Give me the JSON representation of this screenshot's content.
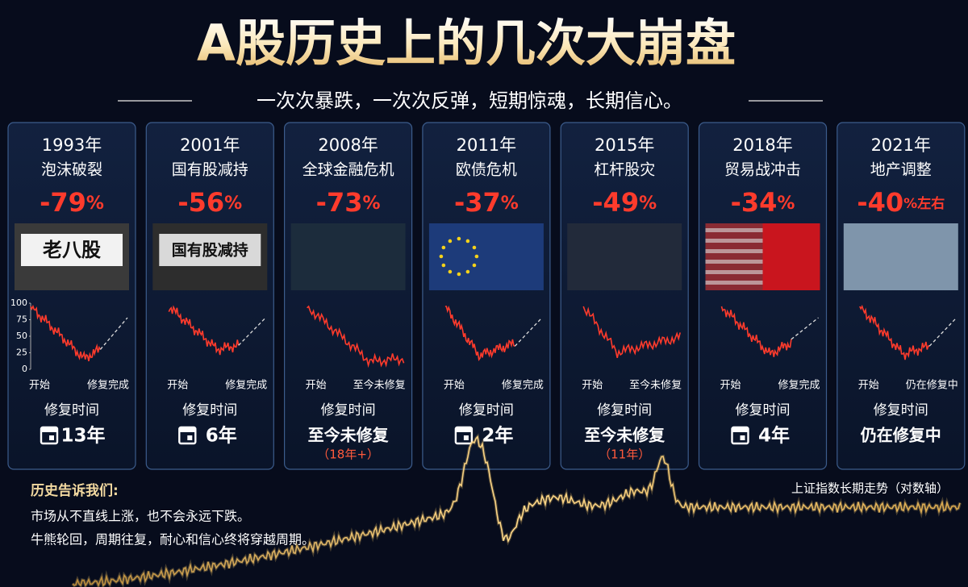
{
  "header": {
    "title": "A股历史上的几次大崩盘",
    "subtitle": "一次次暴跌，一次次反弹，短期惊魂，长期信心。"
  },
  "cards": [
    {
      "year": "1993年",
      "event": "泡沫破裂",
      "drop": "-79",
      "unit": "%",
      "image_text": "老八股",
      "yticks": [
        100,
        75,
        50,
        25,
        0
      ],
      "start": "开始",
      "end": "修复完成",
      "repair_label": "修复时间",
      "repair": "13年",
      "icon": true
    },
    {
      "year": "2001年",
      "event": "国有股减持",
      "drop": "-56",
      "unit": "%",
      "image_text": "国有股减持",
      "start": "开始",
      "end": "修复完成",
      "repair_label": "修复时间",
      "repair": "6年",
      "icon": true
    },
    {
      "year": "2008年",
      "event": "全球金融危机",
      "drop": "-73",
      "unit": "%",
      "start": "开始",
      "end": "至今未修复",
      "repair_label": "修复时间",
      "repair": "至今未修复",
      "note": "（18年+）",
      "icon": false
    },
    {
      "year": "2011年",
      "event": "欧债危机",
      "drop": "-37",
      "unit": "%",
      "start": "开始",
      "end": "修复完成",
      "repair_label": "修复时间",
      "repair": "2年",
      "icon": true
    },
    {
      "year": "2015年",
      "event": "杠杆股灾",
      "drop": "-49",
      "unit": "%",
      "start": "开始",
      "end": "至今未修复",
      "repair_label": "修复时间",
      "repair": "至今未修复",
      "note": "（11年）",
      "icon": false
    },
    {
      "year": "2018年",
      "event": "贸易战冲击",
      "drop": "-34",
      "unit": "%",
      "start": "开始",
      "end": "修复完成",
      "repair_label": "修复时间",
      "repair": "4年",
      "icon": true
    },
    {
      "year": "2021年",
      "event": "地产调整",
      "drop": "-40",
      "unit": "%左右",
      "start": "开始",
      "end": "仍在修复中",
      "repair_label": "修复时间",
      "repair": "仍在修复中",
      "icon": false
    }
  ],
  "footer": {
    "heading": "历史告诉我们:",
    "lines": [
      "市场从不直线上涨，也不会永远下跌。",
      "牛熊轮回，周期往复，耐心和信心终将穿越周期。"
    ],
    "chart_label": "上证指数长期走势（对数轴）"
  }
}
